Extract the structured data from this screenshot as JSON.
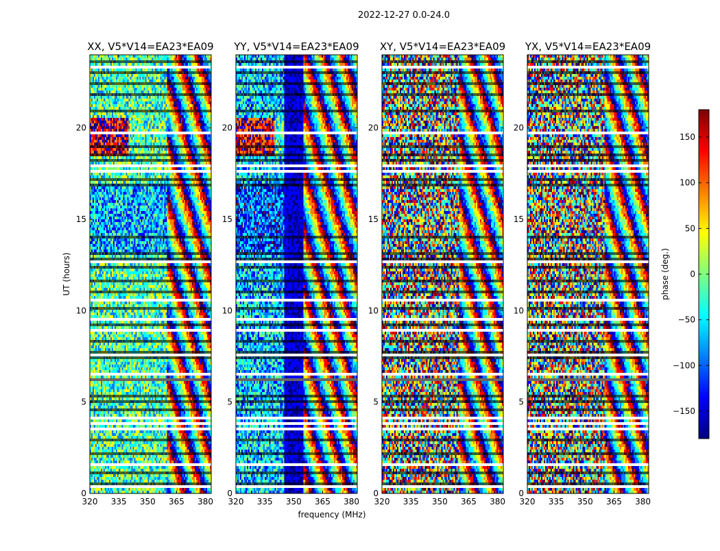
{
  "figure": {
    "suptitle": "2022-12-27 0.0-24.0",
    "xlabel": "frequency (MHz)",
    "ylabel": "UT (hours)",
    "colorbar_label": "phase (deg.)",
    "colorbar_ticks": [
      150,
      100,
      50,
      0,
      -50,
      -100,
      -150
    ],
    "colorbar_range": [
      -180,
      180
    ],
    "colormap": [
      "#00007f",
      "#0000ff",
      "#007fff",
      "#00ffff",
      "#7fff7f",
      "#ffff00",
      "#ff7f00",
      "#ff0000",
      "#7f0000"
    ]
  },
  "chart_data": [
    {
      "type": "heatmap",
      "title": "XX, V5*V14=EA23*EA09",
      "xlabel": "frequency (MHz)",
      "ylabel": "UT (hours)",
      "xlim": [
        320,
        383
      ],
      "ylim": [
        0,
        24
      ],
      "xticks": [
        320,
        335,
        350,
        365,
        380
      ],
      "yticks": [
        0,
        5,
        10,
        15,
        20
      ],
      "z_label": "phase (deg.)",
      "z_range": [
        -180,
        180
      ],
      "character": "parallel-hand: smooth phase at low frequency, fringe wrapping above ~360 MHz"
    },
    {
      "type": "heatmap",
      "title": "YY, V5*V14=EA23*EA09",
      "xlabel": "frequency (MHz)",
      "xlim": [
        320,
        383
      ],
      "ylim": [
        0,
        24
      ],
      "xticks": [
        320,
        335,
        350,
        365,
        380
      ],
      "yticks": [
        0,
        5,
        10,
        15,
        20
      ],
      "z_label": "phase (deg.)",
      "z_range": [
        -180,
        180
      ],
      "character": "parallel-hand: smooth phase below ~355 MHz, fringe wrapping above"
    },
    {
      "type": "heatmap",
      "title": "XY, V5*V14=EA23*EA09",
      "xlabel": "frequency (MHz)",
      "xlim": [
        320,
        383
      ],
      "ylim": [
        0,
        24
      ],
      "xticks": [
        320,
        335,
        350,
        365,
        380
      ],
      "yticks": [
        0,
        5,
        10,
        15,
        20
      ],
      "z_label": "phase (deg.)",
      "z_range": [
        -180,
        180
      ],
      "character": "cross-hand: mostly noise-like phase with fringes at high frequency"
    },
    {
      "type": "heatmap",
      "title": "YX, V5*V14=EA23*EA09",
      "xlabel": "frequency (MHz)",
      "xlim": [
        320,
        383
      ],
      "ylim": [
        0,
        24
      ],
      "xticks": [
        320,
        335,
        350,
        365,
        380
      ],
      "yticks": [
        0,
        5,
        10,
        15,
        20
      ],
      "z_label": "phase (deg.)",
      "z_range": [
        -180,
        180
      ],
      "character": "cross-hand: mostly noise-like phase with fringes at high frequency"
    }
  ]
}
